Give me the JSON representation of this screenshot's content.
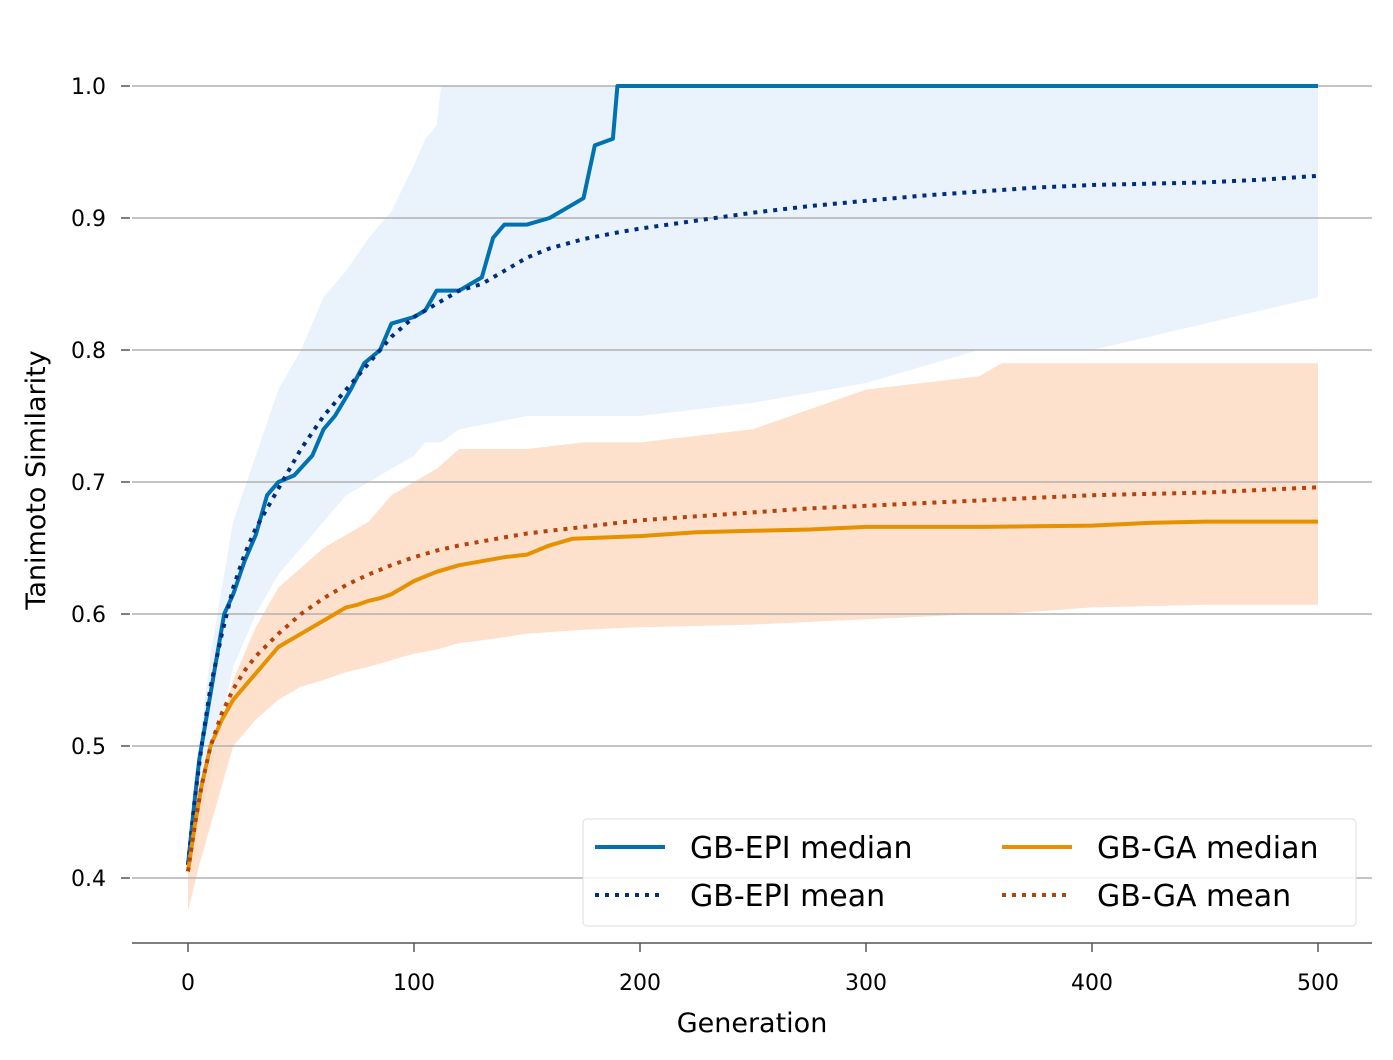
{
  "chart_data": {
    "type": "line",
    "title": "",
    "xlabel": "Generation",
    "ylabel": "Tanimoto Similarity",
    "xlim": [
      -25,
      525
    ],
    "ylim": [
      0.35,
      1.06
    ],
    "xticks": [
      0,
      100,
      200,
      300,
      400,
      500
    ],
    "yticks": [
      0.4,
      0.5,
      0.6,
      0.7,
      0.8,
      0.9,
      1.0
    ],
    "ytick_labels": [
      "0.4",
      "0.5",
      "0.6",
      "0.7",
      "0.8",
      "0.9",
      "1.0"
    ],
    "grid": "horizontal",
    "legend": {
      "placement": "bottom-right",
      "columns": 2
    },
    "series": [
      {
        "name": "GB-EPI median",
        "style": "solid",
        "color": "#0072b2",
        "x": [
          0,
          3,
          5,
          8,
          12,
          16,
          20,
          25,
          30,
          35,
          40,
          47,
          55,
          60,
          65,
          72,
          78,
          85,
          90,
          100,
          105,
          110,
          120,
          130,
          135,
          140,
          150,
          160,
          170,
          175,
          180,
          188,
          190,
          200,
          300,
          400,
          500
        ],
        "y": [
          0.41,
          0.46,
          0.49,
          0.52,
          0.56,
          0.6,
          0.615,
          0.64,
          0.66,
          0.69,
          0.7,
          0.705,
          0.72,
          0.74,
          0.75,
          0.77,
          0.79,
          0.8,
          0.82,
          0.825,
          0.83,
          0.845,
          0.845,
          0.855,
          0.885,
          0.895,
          0.895,
          0.9,
          0.91,
          0.915,
          0.955,
          0.96,
          1.0,
          1.0,
          1.0,
          1.0,
          1.0
        ]
      },
      {
        "name": "GB-EPI mean",
        "style": "dotted",
        "color": "#002d80",
        "x": [
          0,
          3,
          6,
          10,
          15,
          20,
          25,
          30,
          40,
          50,
          60,
          70,
          80,
          90,
          100,
          110,
          120,
          130,
          140,
          150,
          160,
          175,
          190,
          200,
          225,
          250,
          275,
          300,
          325,
          350,
          375,
          400,
          425,
          450,
          475,
          500
        ],
        "y": [
          0.41,
          0.46,
          0.5,
          0.545,
          0.585,
          0.62,
          0.645,
          0.665,
          0.695,
          0.725,
          0.75,
          0.77,
          0.79,
          0.81,
          0.825,
          0.835,
          0.845,
          0.85,
          0.86,
          0.87,
          0.877,
          0.884,
          0.889,
          0.892,
          0.898,
          0.904,
          0.909,
          0.913,
          0.917,
          0.92,
          0.923,
          0.925,
          0.926,
          0.927,
          0.929,
          0.932
        ]
      },
      {
        "name": "GB-GA median",
        "style": "solid",
        "color": "#e69100",
        "x": [
          0,
          3,
          6,
          10,
          15,
          20,
          25,
          30,
          35,
          40,
          45,
          50,
          55,
          60,
          65,
          70,
          75,
          80,
          85,
          90,
          95,
          100,
          110,
          120,
          130,
          140,
          150,
          160,
          170,
          200,
          225,
          250,
          275,
          300,
          350,
          400,
          425,
          450,
          500
        ],
        "y": [
          0.405,
          0.44,
          0.47,
          0.5,
          0.52,
          0.535,
          0.545,
          0.555,
          0.565,
          0.575,
          0.58,
          0.585,
          0.59,
          0.595,
          0.6,
          0.605,
          0.607,
          0.61,
          0.612,
          0.615,
          0.62,
          0.625,
          0.632,
          0.637,
          0.64,
          0.643,
          0.645,
          0.652,
          0.657,
          0.659,
          0.662,
          0.663,
          0.664,
          0.666,
          0.666,
          0.667,
          0.669,
          0.67,
          0.67
        ]
      },
      {
        "name": "GB-GA mean",
        "style": "dotted",
        "color": "#b5430b",
        "x": [
          0,
          3,
          6,
          10,
          15,
          20,
          25,
          30,
          40,
          50,
          60,
          70,
          80,
          90,
          100,
          110,
          120,
          130,
          140,
          150,
          160,
          175,
          190,
          200,
          225,
          250,
          275,
          300,
          325,
          350,
          375,
          400,
          425,
          450,
          475,
          500
        ],
        "y": [
          0.405,
          0.44,
          0.47,
          0.5,
          0.525,
          0.543,
          0.557,
          0.568,
          0.585,
          0.6,
          0.612,
          0.622,
          0.63,
          0.637,
          0.643,
          0.648,
          0.652,
          0.655,
          0.658,
          0.661,
          0.663,
          0.666,
          0.669,
          0.671,
          0.674,
          0.677,
          0.68,
          0.682,
          0.684,
          0.686,
          0.688,
          0.69,
          0.691,
          0.692,
          0.694,
          0.696
        ]
      }
    ],
    "bands": [
      {
        "of": "GB-EPI",
        "color": "#d5e7f7",
        "opacity": 0.5,
        "x": [
          0,
          5,
          10,
          15,
          20,
          30,
          40,
          50,
          60,
          70,
          80,
          90,
          100,
          105,
          110,
          112,
          120,
          150,
          200,
          250,
          300,
          350,
          400,
          450,
          500
        ],
        "upper": [
          0.43,
          0.5,
          0.57,
          0.62,
          0.67,
          0.72,
          0.77,
          0.8,
          0.84,
          0.86,
          0.885,
          0.905,
          0.94,
          0.96,
          0.97,
          1.0,
          1.0,
          1.0,
          1.0,
          1.0,
          1.0,
          1.0,
          1.0,
          1.0,
          1.0
        ],
        "lower": [
          0.41,
          0.44,
          0.48,
          0.52,
          0.56,
          0.6,
          0.63,
          0.65,
          0.67,
          0.69,
          0.7,
          0.71,
          0.72,
          0.73,
          0.73,
          0.73,
          0.74,
          0.75,
          0.75,
          0.76,
          0.775,
          0.8,
          0.8,
          0.82,
          0.84
        ]
      },
      {
        "of": "GB-GA",
        "color": "#fbc8a3",
        "opacity": 0.55,
        "x": [
          0,
          5,
          10,
          15,
          20,
          30,
          40,
          50,
          60,
          70,
          80,
          90,
          100,
          110,
          120,
          130,
          150,
          175,
          200,
          250,
          300,
          350,
          360,
          400,
          450,
          500
        ],
        "upper": [
          0.41,
          0.46,
          0.49,
          0.52,
          0.55,
          0.59,
          0.62,
          0.635,
          0.65,
          0.66,
          0.67,
          0.69,
          0.7,
          0.71,
          0.725,
          0.725,
          0.725,
          0.73,
          0.73,
          0.74,
          0.77,
          0.78,
          0.79,
          0.79,
          0.79,
          0.79
        ],
        "lower": [
          0.375,
          0.41,
          0.44,
          0.47,
          0.5,
          0.52,
          0.535,
          0.545,
          0.55,
          0.556,
          0.56,
          0.565,
          0.57,
          0.573,
          0.578,
          0.58,
          0.585,
          0.588,
          0.59,
          0.592,
          0.596,
          0.6,
          0.6,
          0.605,
          0.607,
          0.607
        ]
      }
    ]
  }
}
